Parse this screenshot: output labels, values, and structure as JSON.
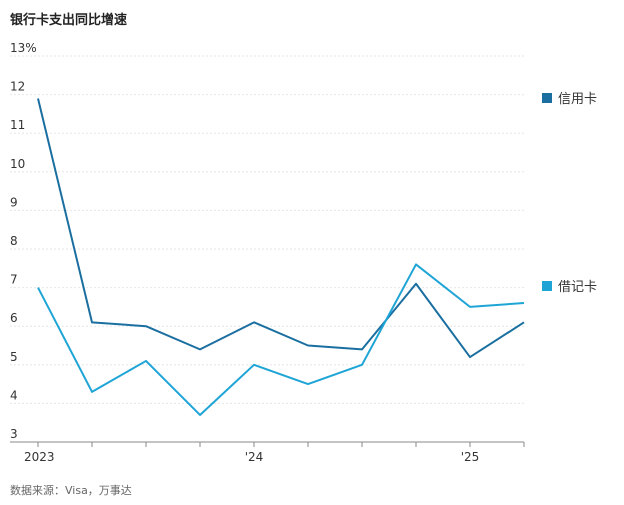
{
  "chart_data": {
    "type": "line",
    "title": "银行卡支出同比增速",
    "source": "数据来源：Visa，万事达",
    "y_unit_label": "13%",
    "ylim": [
      3,
      13
    ],
    "yticks": [
      "3",
      "4",
      "5",
      "6",
      "7",
      "8",
      "9",
      "10",
      "11",
      "12",
      "13%"
    ],
    "xlim": [
      0,
      9
    ],
    "x_tick_labels": [
      {
        "x": 0,
        "label": "2023"
      },
      {
        "x": 4,
        "label": "'24"
      },
      {
        "x": 8,
        "label": "'25"
      }
    ],
    "grid": true,
    "legend_position": "right",
    "x": [
      0,
      1,
      2,
      3,
      4,
      5,
      6,
      7,
      8,
      9
    ],
    "series": [
      {
        "name": "信用卡",
        "color": "#1a6fa0",
        "values": [
          11.9,
          6.1,
          6.0,
          5.4,
          6.1,
          5.5,
          5.4,
          7.1,
          5.2,
          6.1
        ]
      },
      {
        "name": "借记卡",
        "color": "#1ea5d6",
        "values": [
          7.0,
          4.3,
          5.1,
          3.7,
          5.0,
          4.5,
          5.0,
          7.6,
          6.5,
          6.6
        ]
      }
    ]
  }
}
